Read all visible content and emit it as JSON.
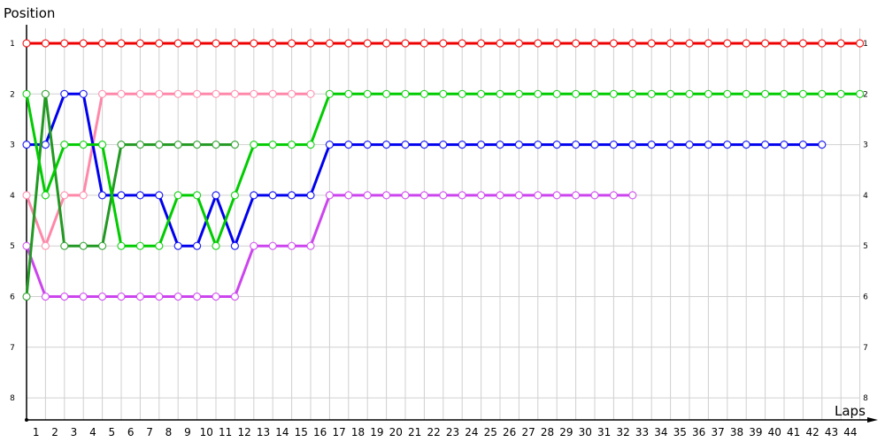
{
  "chart_data": {
    "type": "line",
    "ylabel": "Position",
    "xlabel": "Laps",
    "x_tick_labels": [
      "1",
      "2",
      "3",
      "4",
      "5",
      "6",
      "7",
      "8",
      "9",
      "10",
      "11",
      "12",
      "13",
      "14",
      "15",
      "16",
      "17",
      "18",
      "19",
      "20",
      "21",
      "22",
      "23",
      "24",
      "25",
      "26",
      "27",
      "28",
      "29",
      "30",
      "31",
      "32",
      "33",
      "34",
      "35",
      "36",
      "37",
      "38",
      "39",
      "40",
      "41",
      "42",
      "43",
      "44"
    ],
    "y_tick_labels": [
      "1",
      "2",
      "3",
      "4",
      "5",
      "6",
      "7",
      "8"
    ],
    "ylim": [
      1,
      8
    ],
    "y_inverted": true,
    "grid": true,
    "markers": "hollow-circle",
    "series": [
      {
        "color": "#ee0000",
        "values": [
          1,
          1,
          1,
          1,
          1,
          1,
          1,
          1,
          1,
          1,
          1,
          1,
          1,
          1,
          1,
          1,
          1,
          1,
          1,
          1,
          1,
          1,
          1,
          1,
          1,
          1,
          1,
          1,
          1,
          1,
          1,
          1,
          1,
          1,
          1,
          1,
          1,
          1,
          1,
          1,
          1,
          1,
          1,
          1,
          1
        ]
      },
      {
        "color": "#ff88aa",
        "values": [
          4,
          5,
          4,
          4,
          2,
          2,
          2,
          2,
          2,
          2,
          2,
          2,
          2,
          2,
          2,
          2
        ]
      },
      {
        "color": "#cc44ee",
        "values": [
          5,
          6,
          6,
          6,
          6,
          6,
          6,
          6,
          6,
          6,
          6,
          6,
          5,
          5,
          5,
          5,
          4,
          4,
          4,
          4,
          4,
          4,
          4,
          4,
          4,
          4,
          4,
          4,
          4,
          4,
          4,
          4,
          4
        ]
      },
      {
        "color": "#0000ee",
        "values": [
          3,
          3,
          2,
          2,
          4,
          4,
          4,
          4,
          5,
          5,
          4,
          5,
          4,
          4,
          4,
          4,
          3,
          3,
          3,
          3,
          3,
          3,
          3,
          3,
          3,
          3,
          3,
          3,
          3,
          3,
          3,
          3,
          3,
          3,
          3,
          3,
          3,
          3,
          3,
          3,
          3,
          3,
          3
        ]
      },
      {
        "color": "#229922",
        "values": [
          6,
          2,
          5,
          5,
          5,
          3,
          3,
          3,
          3,
          3,
          3,
          3
        ]
      },
      {
        "color": "#00cc00",
        "values": [
          2,
          4,
          3,
          3,
          3,
          5,
          5,
          5,
          4,
          4,
          5,
          4,
          3,
          3,
          3,
          3,
          2,
          2,
          2,
          2,
          2,
          2,
          2,
          2,
          2,
          2,
          2,
          2,
          2,
          2,
          2,
          2,
          2,
          2,
          2,
          2,
          2,
          2,
          2,
          2,
          2,
          2,
          2,
          2,
          2
        ]
      }
    ]
  }
}
